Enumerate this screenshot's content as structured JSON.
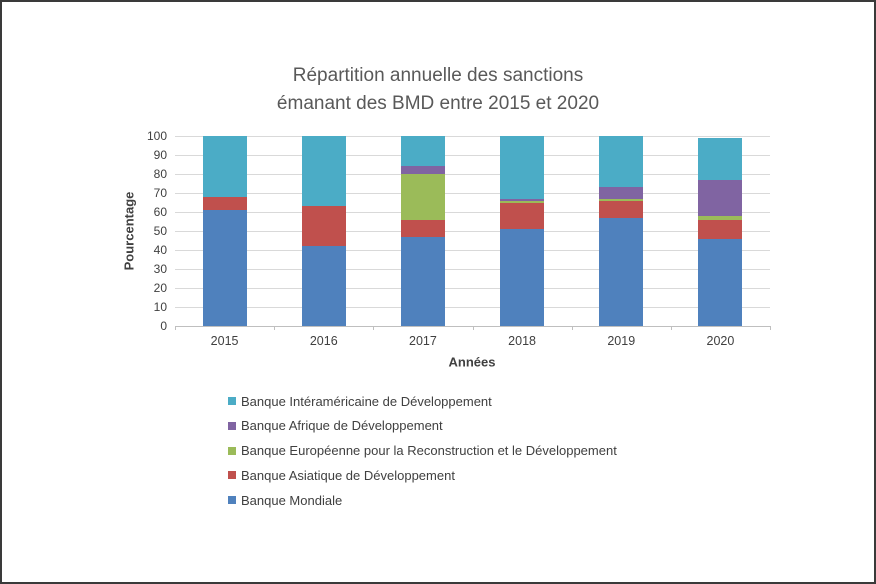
{
  "window": {
    "background": "#ffffff",
    "border_color": "#3a3a3a"
  },
  "colors": {
    "grid": "#d9d9d9",
    "axis_line": "#bfbfbf",
    "title_text": "#595959",
    "axis_text": "#404040"
  },
  "chart_data": {
    "type": "bar",
    "subtype": "stacked-percentage",
    "title": "Répartition annuelle des sanctions émanant des BMD entre 2015 et 2020",
    "title_lines": [
      "Répartition annuelle des sanctions",
      "émanant des BMD entre 2015 et 2020"
    ],
    "xlabel": "Années",
    "ylabel": "Pourcentage",
    "ylim": [
      0,
      100
    ],
    "yticks": [
      0,
      10,
      20,
      30,
      40,
      50,
      60,
      70,
      80,
      90,
      100
    ],
    "grid": true,
    "legend_position": "bottom-left",
    "categories": [
      "2015",
      "2016",
      "2017",
      "2018",
      "2019",
      "2020"
    ],
    "series": [
      {
        "name": "Banque Mondiale",
        "color": "#4F81BD",
        "values": [
          61,
          42,
          47,
          51,
          57,
          46
        ]
      },
      {
        "name": "Banque Asiatique de Développement",
        "color": "#C0504D",
        "values": [
          7,
          21,
          9,
          14,
          9,
          10
        ]
      },
      {
        "name": "Banque Européenne pour la Reconstruction et le Développement",
        "color": "#9BBB59",
        "values": [
          0,
          0,
          24,
          1,
          1,
          2
        ]
      },
      {
        "name": "Banque Afrique de Développement",
        "color": "#8064A2",
        "values": [
          0,
          0,
          4,
          1,
          6,
          19
        ]
      },
      {
        "name": "Banque Intéraméricaine de Développement",
        "color": "#4BACC6",
        "values": [
          32,
          37,
          16,
          33,
          27,
          22
        ]
      }
    ],
    "legend": [
      {
        "label": "Banque Intéraméricaine de Développement",
        "color": "#4BACC6"
      },
      {
        "label": "Banque Afrique de Développement",
        "color": "#8064A2"
      },
      {
        "label": "Banque Européenne pour la Reconstruction et le Développement",
        "color": "#9BBB59"
      },
      {
        "label": "Banque Asiatique de Développement",
        "color": "#C0504D"
      },
      {
        "label": "Banque Mondiale",
        "color": "#4F81BD"
      }
    ]
  }
}
